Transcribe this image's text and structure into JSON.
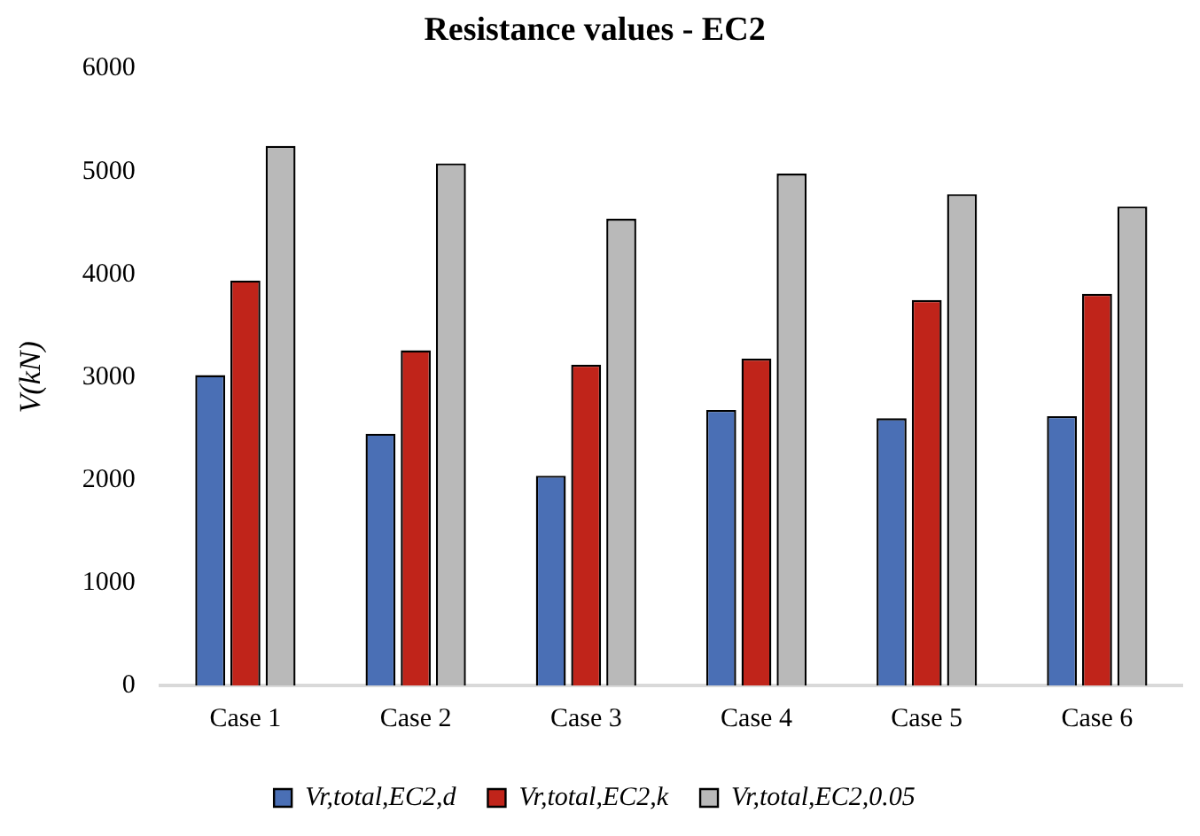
{
  "chart_data": {
    "type": "bar",
    "title": "Resistance values - EC2",
    "ylabel": "V(kN)",
    "categories": [
      "Case 1",
      "Case 2",
      "Case 3",
      "Case 4",
      "Case 5",
      "Case 6"
    ],
    "series": [
      {
        "name": "Vr,total,EC2,d",
        "color": "#4a6fb5",
        "values": [
          3020,
          2450,
          2040,
          2680,
          2600,
          2620
        ]
      },
      {
        "name": "Vr,total,EC2,k",
        "color": "#c0241a",
        "values": [
          3940,
          3260,
          3120,
          3180,
          3750,
          3810
        ]
      },
      {
        "name": "Vr,total,EC2,0.05",
        "color": "#b9b9b9",
        "values": [
          5250,
          5080,
          4540,
          4980,
          4780,
          4660
        ]
      }
    ],
    "ylim": [
      0,
      6000
    ],
    "yticks": [
      0,
      1000,
      2000,
      3000,
      4000,
      5000,
      6000
    ],
    "grid": false,
    "legend": "bottom"
  }
}
